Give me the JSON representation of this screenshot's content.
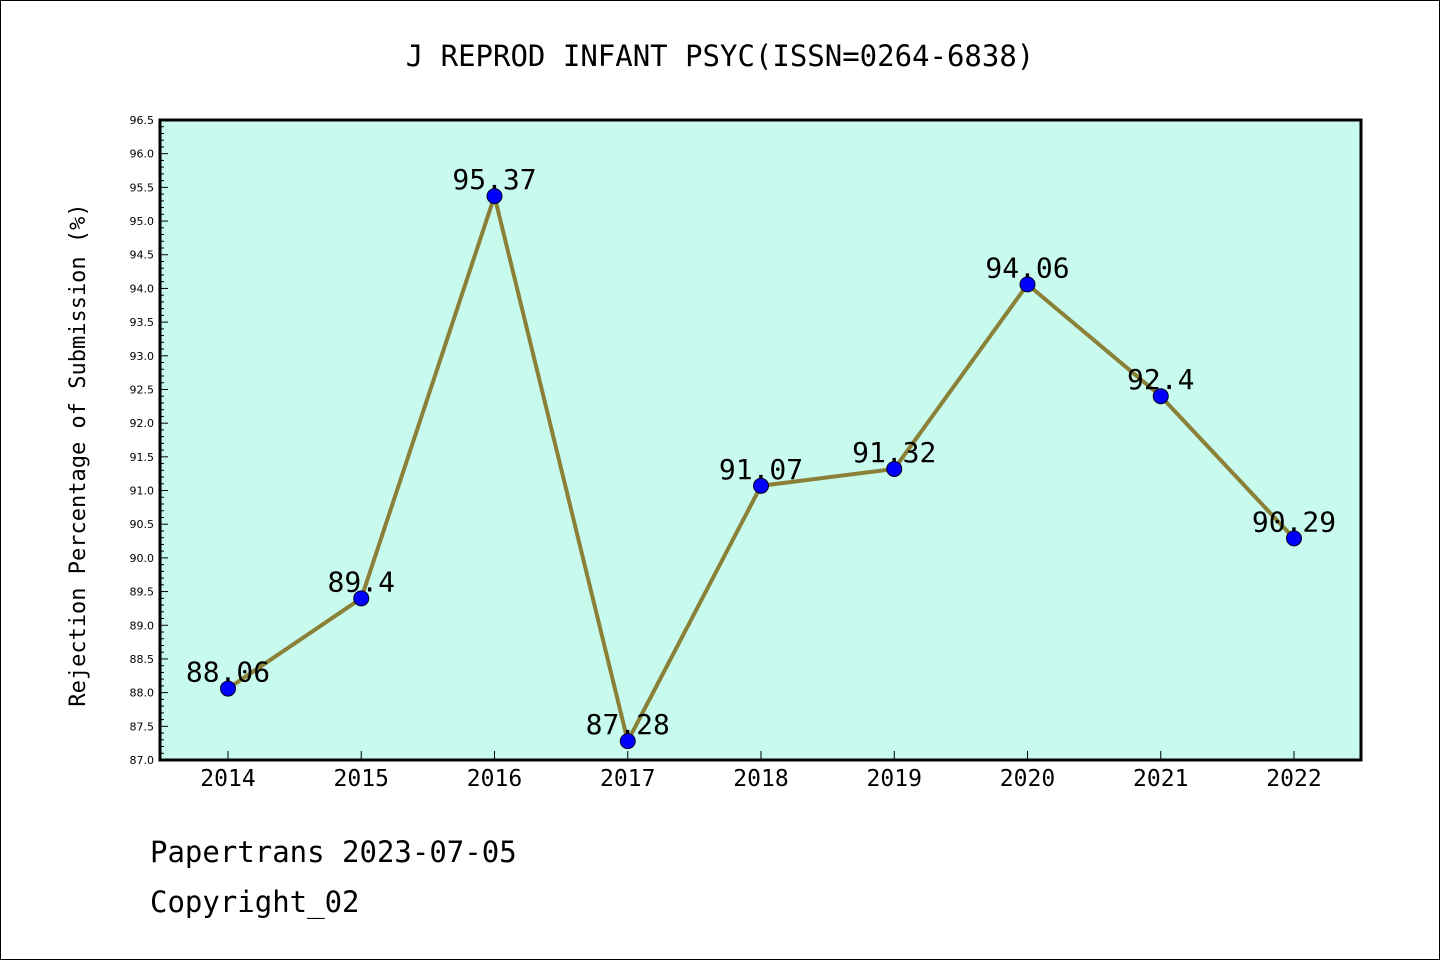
{
  "footer": {
    "line1": "Papertrans 2023-07-05",
    "line2": "Copyright_02"
  },
  "colors": {
    "plot_background": "#c8fbee",
    "line": "#8a8038",
    "marker": "#0000ff",
    "axis": "#000000"
  },
  "chart_data": {
    "type": "line",
    "title": "J REPROD INFANT PSYC(ISSN=0264-6838)",
    "xlabel": "",
    "ylabel": "Rejection Percentage of Submission (%)",
    "categories": [
      "2014",
      "2015",
      "2016",
      "2017",
      "2018",
      "2019",
      "2020",
      "2021",
      "2022"
    ],
    "series": [
      {
        "name": "Rejection Percentage",
        "values": [
          88.06,
          89.4,
          95.37,
          87.28,
          91.07,
          91.32,
          94.06,
          92.4,
          90.29
        ],
        "labels": [
          "88.06",
          "89.4",
          "95.37",
          "87.28",
          "91.07",
          "91.32",
          "94.06",
          "92.4",
          "90.29"
        ]
      }
    ],
    "ylim": [
      87.0,
      96.5
    ],
    "yticks": [
      "87.0",
      "87.5",
      "88.0",
      "88.5",
      "89.0",
      "89.5",
      "90.0",
      "90.5",
      "91.0",
      "91.5",
      "92.0",
      "92.5",
      "93.0",
      "93.5",
      "94.0",
      "94.5",
      "95.0",
      "95.5",
      "96.0",
      "96.5"
    ],
    "grid": false,
    "legend": "none"
  }
}
